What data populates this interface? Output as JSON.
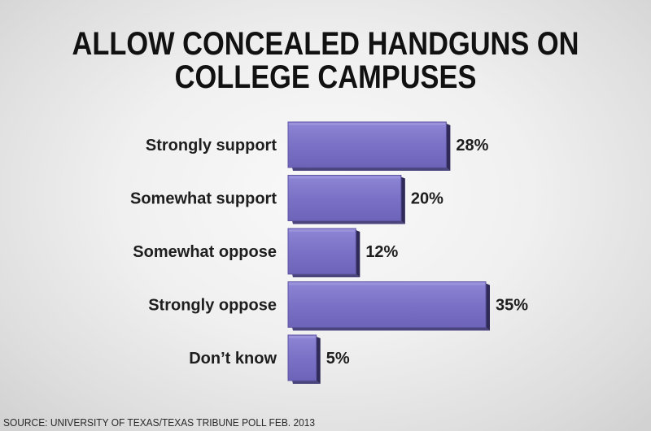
{
  "chart_data": {
    "type": "bar",
    "orientation": "horizontal",
    "title_lines": [
      "ALLOW CONCEALED HANDGUNS ON",
      "COLLEGE CAMPUSES"
    ],
    "categories": [
      "Strongly support",
      "Somewhat support",
      "Somewhat oppose",
      "Strongly oppose",
      "Don’t know"
    ],
    "values": [
      28,
      20,
      12,
      35,
      5
    ],
    "value_labels": [
      "28%",
      "20%",
      "12%",
      "35%",
      "5%"
    ],
    "unit": "%",
    "xlim": [
      0,
      35
    ],
    "grid": false,
    "legend": "none",
    "bar_color": "#7c72c6"
  },
  "source": "SOURCE: UNIVERSITY OF TEXAS/TEXAS TRIBUNE POLL FEB. 2013"
}
